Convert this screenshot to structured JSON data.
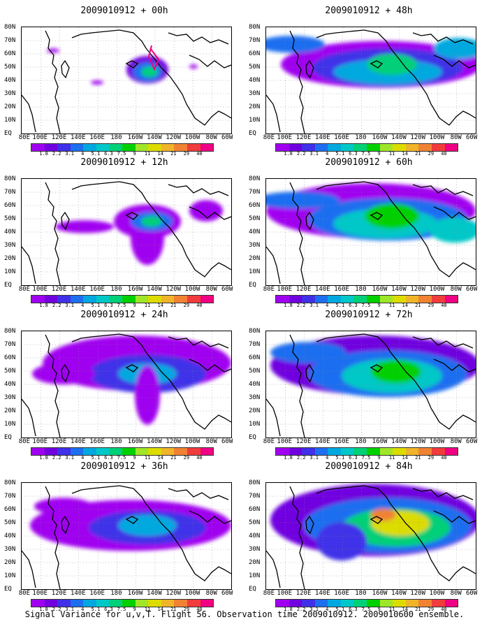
{
  "caption": "Signal Variance for u,v,T. Flight 56. Observation time 2009010912. 2009010600 ensemble.",
  "lat_labels": [
    "80N",
    "70N",
    "60N",
    "50N",
    "40N",
    "30N",
    "20N",
    "10N",
    "EQ"
  ],
  "lon_labels": [
    "80E",
    "100E",
    "120E",
    "140E",
    "160E",
    "180",
    "160W",
    "140W",
    "120W",
    "100W",
    "80W",
    "60W"
  ],
  "colorbar": {
    "labels": [
      "1.8",
      "2.2",
      "3.1",
      "4",
      "5.1",
      "6.3",
      "7.5",
      "9",
      "11",
      "14",
      "21",
      "29",
      "40"
    ],
    "colors": [
      "#a000f0",
      "#7000e0",
      "#4030e8",
      "#1e6ef0",
      "#00a8e0",
      "#00c8c8",
      "#00d078",
      "#00d000",
      "#a0e628",
      "#dcdc00",
      "#f0b428",
      "#f08232",
      "#f03c3c",
      "#f00082"
    ]
  },
  "panels": [
    {
      "title": "2009010912 + 00h"
    },
    {
      "title": "2009010912 + 48h"
    },
    {
      "title": "2009010912 + 12h"
    },
    {
      "title": "2009010912 + 60h"
    },
    {
      "title": "2009010912 + 24h"
    },
    {
      "title": "2009010912 + 72h"
    },
    {
      "title": "2009010912 + 36h"
    },
    {
      "title": "2009010912 + 84h"
    }
  ]
}
